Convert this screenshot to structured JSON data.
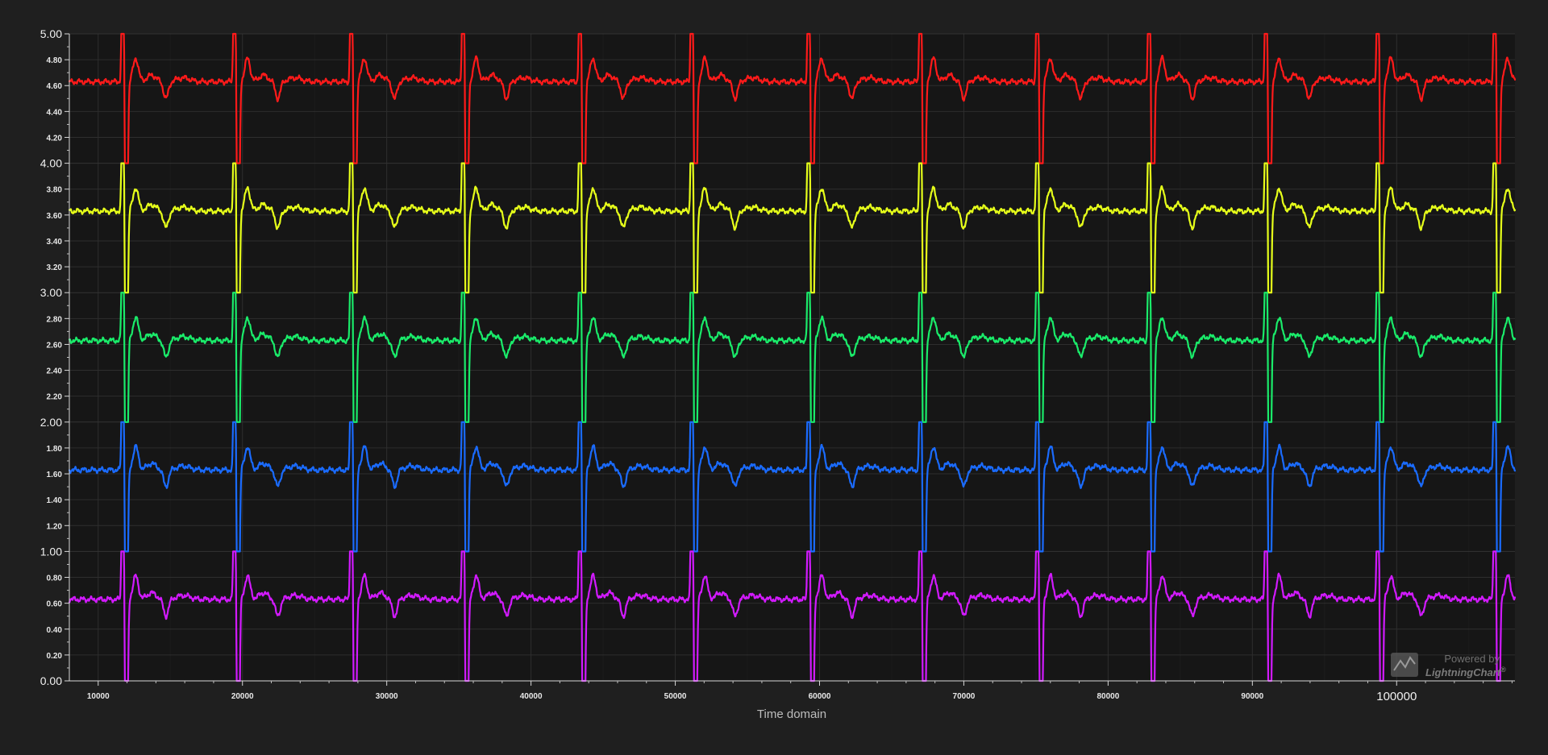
{
  "chart_data": {
    "type": "line",
    "title": "",
    "xlabel": "Time domain",
    "ylabel": "",
    "xlim": [
      8000,
      108200
    ],
    "ylim": [
      0,
      5
    ],
    "grid": true,
    "x_ticks": [
      {
        "value": 10000,
        "label": "10000",
        "big": false
      },
      {
        "value": 20000,
        "label": "20000",
        "big": false
      },
      {
        "value": 30000,
        "label": "30000",
        "big": false
      },
      {
        "value": 40000,
        "label": "40000",
        "big": false
      },
      {
        "value": 50000,
        "label": "50000",
        "big": false
      },
      {
        "value": 60000,
        "label": "60000",
        "big": false
      },
      {
        "value": 70000,
        "label": "70000",
        "big": false
      },
      {
        "value": 80000,
        "label": "80000",
        "big": false
      },
      {
        "value": 90000,
        "label": "90000",
        "big": false
      },
      {
        "value": 100000,
        "label": "100000",
        "big": true
      }
    ],
    "y_ticks": [
      {
        "value": 0.0,
        "label": "0.00",
        "big": true
      },
      {
        "value": 0.2,
        "label": "0.20",
        "big": false
      },
      {
        "value": 0.4,
        "label": "0.40",
        "big": false
      },
      {
        "value": 0.6,
        "label": "0.60",
        "big": false
      },
      {
        "value": 0.8,
        "label": "0.80",
        "big": false
      },
      {
        "value": 1.0,
        "label": "1.00",
        "big": true
      },
      {
        "value": 1.2,
        "label": "1.20",
        "big": false
      },
      {
        "value": 1.4,
        "label": "1.40",
        "big": false
      },
      {
        "value": 1.6,
        "label": "1.60",
        "big": false
      },
      {
        "value": 1.8,
        "label": "1.80",
        "big": false
      },
      {
        "value": 2.0,
        "label": "2.00",
        "big": true
      },
      {
        "value": 2.2,
        "label": "2.20",
        "big": false
      },
      {
        "value": 2.4,
        "label": "2.40",
        "big": false
      },
      {
        "value": 2.6,
        "label": "2.60",
        "big": false
      },
      {
        "value": 2.8,
        "label": "2.80",
        "big": false
      },
      {
        "value": 3.0,
        "label": "3.00",
        "big": true
      },
      {
        "value": 3.2,
        "label": "3.20",
        "big": false
      },
      {
        "value": 3.4,
        "label": "3.40",
        "big": false
      },
      {
        "value": 3.6,
        "label": "3.60",
        "big": false
      },
      {
        "value": 3.8,
        "label": "3.80",
        "big": false
      },
      {
        "value": 4.0,
        "label": "4.00",
        "big": true
      },
      {
        "value": 4.2,
        "label": "4.20",
        "big": false
      },
      {
        "value": 4.4,
        "label": "4.40",
        "big": false
      },
      {
        "value": 4.6,
        "label": "4.60",
        "big": false
      },
      {
        "value": 4.8,
        "label": "4.80",
        "big": false
      },
      {
        "value": 5.0,
        "label": "5.00",
        "big": true
      }
    ],
    "beat_x": [
      11700,
      19450,
      27550,
      35300,
      43400,
      51150,
      59250,
      67000,
      75100,
      82850,
      90950,
      98700,
      106800
    ],
    "series": [
      {
        "color": "#ff1a1a",
        "baseline": 4.63,
        "band": [
          4,
          5
        ]
      },
      {
        "color": "#e6ff1a",
        "baseline": 3.63,
        "band": [
          3,
          4
        ]
      },
      {
        "color": "#1aeb6a",
        "baseline": 2.63,
        "band": [
          2,
          3
        ]
      },
      {
        "color": "#1a6bff",
        "baseline": 1.63,
        "band": [
          1,
          2
        ]
      },
      {
        "color": "#d21aff",
        "baseline": 0.63,
        "band": [
          0,
          1
        ]
      }
    ]
  },
  "watermark": {
    "line1": "Powered by",
    "line2": "LightningChart",
    "mark": "®",
    "icon": "lightningchart-logo-icon"
  }
}
